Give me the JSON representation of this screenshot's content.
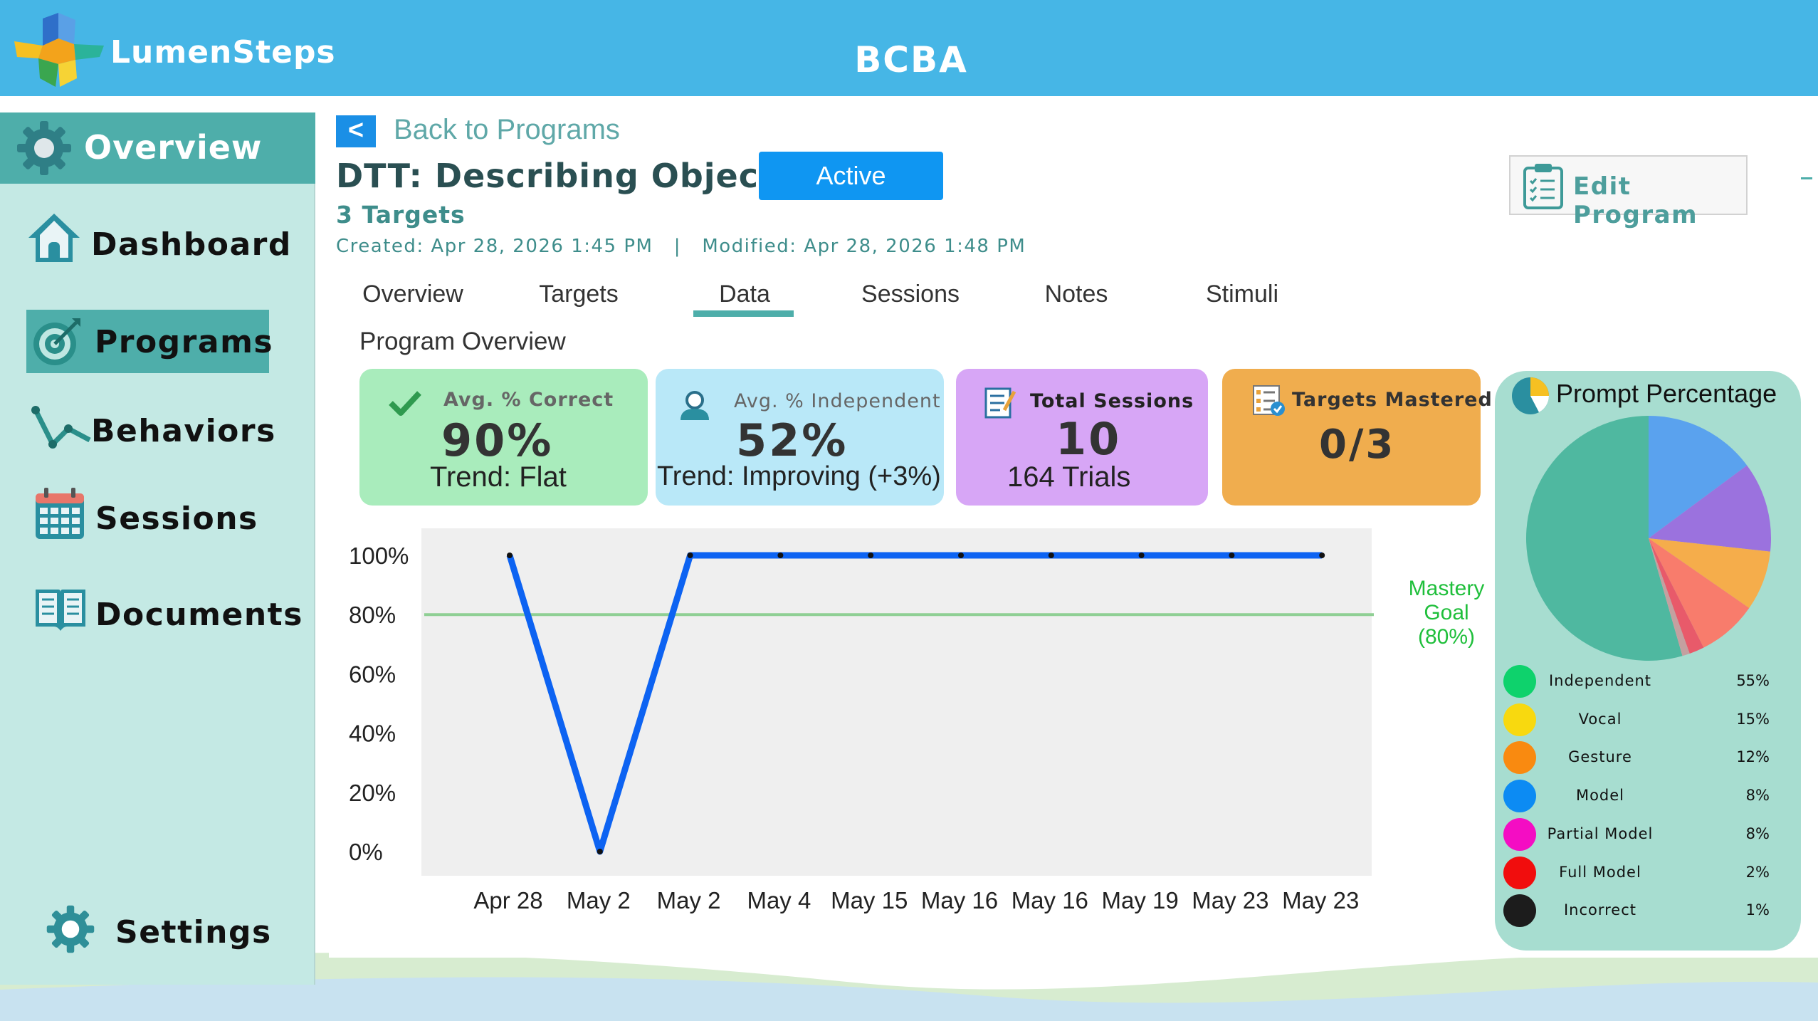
{
  "app": {
    "name": "LumenSteps",
    "role": "BCBA"
  },
  "sidebar": {
    "header": "Overview",
    "items": [
      {
        "label": "Dashboard",
        "icon": "home-icon"
      },
      {
        "label": "Programs",
        "icon": "target-icon",
        "active": true
      },
      {
        "label": "Behaviors",
        "icon": "behavior-graph-icon"
      },
      {
        "label": "Sessions",
        "icon": "calendar-icon"
      },
      {
        "label": "Documents",
        "icon": "book-icon"
      }
    ],
    "settings": "Settings"
  },
  "nav": {
    "back_icon": "<",
    "back_label": "Back to Programs"
  },
  "program": {
    "title": "DTT: Describing Object",
    "status": "Active",
    "targets": "3 Targets",
    "meta": "Created: Apr 28, 2026 1:45 PM   |   Modified: Apr 28, 2026 1:48 PM",
    "edit_label": "Edit Program"
  },
  "tabs": [
    "Overview",
    "Targets",
    "Data",
    "Sessions",
    "Notes",
    "Stimuli"
  ],
  "active_tab": "Data",
  "section_title": "Program Overview",
  "cards": [
    {
      "title": "Avg. % Correct",
      "value": "90%",
      "sub": "Trend: Flat",
      "color": "#a9ecbc",
      "icon": "checkmark-icon"
    },
    {
      "title": "Avg. % Independent",
      "value": "52%",
      "sub": "Trend: Improving (+3%)",
      "color": "#b9e8f8",
      "icon": "user-icon"
    },
    {
      "title": "Total Sessions",
      "value": "10",
      "sub": "164 Trials",
      "color": "#d7a6f6",
      "icon": "notepad-icon"
    },
    {
      "title": "Targets Mastered",
      "value": "0/3",
      "sub": "",
      "color": "#f0ad4e",
      "icon": "checklist-icon"
    }
  ],
  "chart_data": {
    "type": "line",
    "categories": [
      "Apr 28",
      "May 2",
      "May 2",
      "May 4",
      "May 15",
      "May 16",
      "May 16",
      "May 19",
      "May 23",
      "May 23"
    ],
    "series": [
      {
        "values": [
          100,
          0,
          100,
          100,
          100,
          100,
          100,
          100,
          100,
          100
        ]
      }
    ],
    "y_ticks": [
      "0%",
      "20%",
      "40%",
      "60%",
      "80%",
      "100%"
    ],
    "ylim": [
      0,
      100
    ],
    "mastery_goal": 80,
    "mastery_label": [
      "Mastery",
      "Goal",
      "(80%)"
    ],
    "line_color": "#0d63f2",
    "goal_color": "#8fcf94",
    "grid": false
  },
  "prompt_chart": {
    "title": "Prompt Percentage",
    "type": "pie",
    "slices": [
      {
        "label": "Independent",
        "pct": "55%",
        "value": 55,
        "dot": "#0ed26c",
        "fill": "#4fb8a0"
      },
      {
        "label": "Vocal",
        "pct": "15%",
        "value": 15,
        "dot": "#f8d90f",
        "fill": "#5aa2ee"
      },
      {
        "label": "Gesture",
        "pct": "12%",
        "value": 12,
        "dot": "#f98a10",
        "fill": "#9b72de"
      },
      {
        "label": "Model",
        "pct": "8%",
        "value": 8,
        "dot": "#0c8bf3",
        "fill": "#f5ad4b"
      },
      {
        "label": "Partial Model",
        "pct": "8%",
        "value": 8,
        "dot": "#f40dc3",
        "fill": "#f87c6c"
      },
      {
        "label": "Full Model",
        "pct": "2%",
        "value": 2,
        "dot": "#f10d0d",
        "fill": "#e85a6a"
      },
      {
        "label": "Incorrect",
        "pct": "1%",
        "value": 1,
        "dot": "#1c1c1c",
        "fill": "#c4a0a0"
      }
    ]
  }
}
